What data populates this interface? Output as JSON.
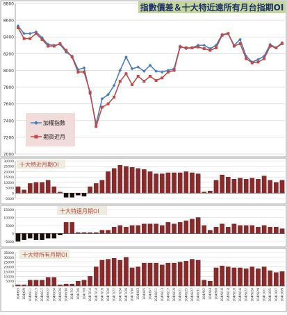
{
  "chart_data": [
    {
      "type": "line",
      "title": "指數價差＆十大特近遠所有月台指期OI",
      "ylim": [
        7000,
        8800
      ],
      "yticks": [
        7000,
        7200,
        7400,
        7600,
        7800,
        8000,
        8200,
        8400,
        8600,
        8800
      ],
      "legend_position": "left",
      "series": [
        {
          "name": "加權指數",
          "values": [
            8530,
            8440,
            8440,
            8460,
            8390,
            8310,
            8300,
            8310,
            8220,
            8170,
            8010,
            8030,
            7720,
            7360,
            7660,
            7710,
            7820,
            8000,
            8160,
            8020,
            8040,
            7990,
            8060,
            7990,
            7980,
            8000,
            8020,
            8290,
            8260,
            8270,
            8300,
            8300,
            8260,
            8300,
            8430,
            8440,
            8300,
            8370,
            8170,
            8100,
            8130,
            8170,
            8310,
            8270,
            8330
          ]
        },
        {
          "name": "期貨近月",
          "values": [
            8510,
            8380,
            8380,
            8440,
            8370,
            8290,
            8290,
            8320,
            8240,
            8160,
            7980,
            7980,
            7740,
            7330,
            7560,
            7600,
            7680,
            7870,
            7960,
            7830,
            7930,
            7870,
            7930,
            7880,
            7910,
            7980,
            8000,
            8280,
            8270,
            8270,
            8280,
            8260,
            8240,
            8270,
            8420,
            8440,
            8290,
            8320,
            8140,
            8090,
            8100,
            8140,
            8290,
            8270,
            8320
          ]
        }
      ]
    },
    {
      "type": "bar",
      "title": "十大特近月期OI",
      "ylim": [
        -5000,
        30000
      ],
      "yticks": [
        -5000,
        0,
        5000,
        10000,
        15000,
        20000,
        25000,
        30000
      ],
      "values": [
        6000,
        3000,
        9000,
        10000,
        10000,
        12000,
        6000,
        1000,
        -4000,
        -4000,
        -2000,
        -3000,
        6000,
        9000,
        12000,
        20000,
        23000,
        26000,
        25000,
        24000,
        23000,
        22000,
        20000,
        18000,
        18000,
        19000,
        19000,
        19000,
        20000,
        19000,
        18000,
        1000,
        2000,
        12000,
        17000,
        15000,
        13000,
        14000,
        13000,
        14000,
        13000,
        16000,
        12000,
        10000,
        12000
      ]
    },
    {
      "type": "bar",
      "title": "十大特遠月期OI",
      "ylim": [
        -5000,
        15000
      ],
      "yticks": [
        -5000,
        0,
        5000,
        10000,
        15000
      ],
      "values": [
        -5000,
        -4000,
        -3000,
        -4000,
        -4000,
        -3000,
        -3000,
        -1000,
        7000,
        7000,
        500,
        600,
        500,
        500,
        2000,
        2000,
        4000,
        5000,
        4000,
        5000,
        5000,
        6000,
        6000,
        6000,
        5000,
        7000,
        6000,
        7000,
        8000,
        9000,
        10000,
        5000,
        2000,
        4000,
        6000,
        4000,
        6000,
        5000,
        5000,
        5000,
        4000,
        5000,
        4000,
        4000,
        3000
      ]
    },
    {
      "type": "bar",
      "title": "十大特所有月期OI",
      "ylim": [
        0,
        35000
      ],
      "yticks": [
        0,
        5000,
        10000,
        15000,
        20000,
        25000,
        30000,
        35000
      ],
      "values": [
        1000,
        1000,
        6000,
        6000,
        6000,
        9000,
        9000,
        1000,
        2000,
        2000,
        5000,
        6000,
        10000,
        20000,
        27000,
        28000,
        29000,
        27000,
        30000,
        19000,
        20000,
        24000,
        24000,
        24000,
        22000,
        24000,
        24000,
        25000,
        26000,
        28000,
        27000,
        6000,
        5000,
        19000,
        21000,
        20000,
        19000,
        19000,
        18000,
        20000,
        18000,
        20000,
        16000,
        14000,
        15000
      ]
    }
  ],
  "x_labels": [
    "104/6/5",
    "104/6/9",
    "104/6/11",
    "104/6/15",
    "104/6/17",
    "104/6/22",
    "104/6/24",
    "104/6/26",
    "104/6/30",
    "104/7/2",
    "104/7/6",
    "104/7/8",
    "104/7/10",
    "104/7/14",
    "104/7/16",
    "104/7/20",
    "104/7/22",
    "104/7/24",
    "104/7/28",
    "104/7/30",
    "104/8/3",
    "104/8/5",
    "104/8/7",
    "104/8/11",
    "104/8/13",
    "104/8/17",
    "104/8/19",
    "104/8/21",
    "104/8/25",
    "104/8/27",
    "104/8/31",
    "104/9/2",
    "104/9/4",
    "104/9/8",
    "104/9/10",
    "104/9/14",
    "104/9/16",
    "104/9/18",
    "104/9/22",
    "104/9/24",
    "104/9/29",
    "104/10/1",
    "104/10/5",
    "104/10/7",
    "104/10/9"
  ],
  "colors": {
    "line_index": "#4a7ebb",
    "line_futures": "#be4b48",
    "bar": "#8b2a2a",
    "bar_edge": "#5e1b1b",
    "negative_bar": "#111111",
    "title_bg": "#c4d79b",
    "title_text": "#1f2f6b",
    "legend_bg": "#f2dcdb",
    "panel_label_bg": "#eeece1",
    "panel_label_text": "#b84a3d",
    "grid": "#d9d9d9",
    "frame": "#a6a6a6"
  }
}
